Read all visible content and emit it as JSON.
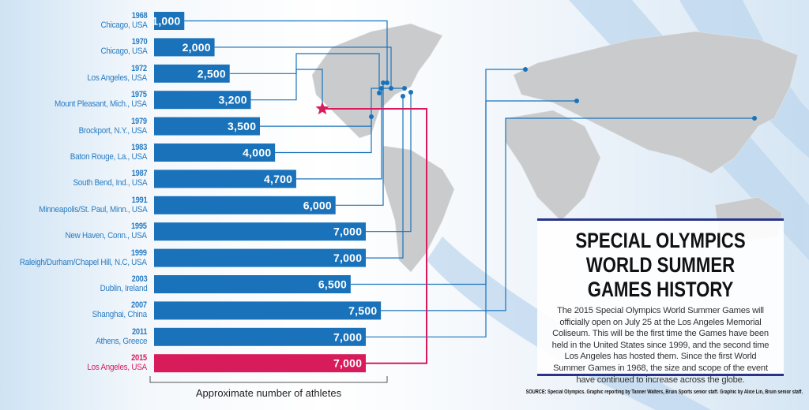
{
  "chart_data": {
    "type": "bar",
    "orientation": "horizontal",
    "xlabel": "Approximate number of athletes",
    "categories": [
      {
        "year": "1968",
        "city": "Chicago, USA"
      },
      {
        "year": "1970",
        "city": "Chicago, USA"
      },
      {
        "year": "1972",
        "city": "Los Angeles, USA"
      },
      {
        "year": "1975",
        "city": "Mount Pleasant, Mich., USA"
      },
      {
        "year": "1979",
        "city": "Brockport, N.Y., USA"
      },
      {
        "year": "1983",
        "city": "Baton Rouge, La., USA"
      },
      {
        "year": "1987",
        "city": "South Bend, Ind., USA"
      },
      {
        "year": "1991",
        "city": "Minneapolis/St. Paul, Minn., USA"
      },
      {
        "year": "1995",
        "city": "New Haven, Conn., USA"
      },
      {
        "year": "1999",
        "city": "Raleigh/Durham/Chapel Hill, N.C, USA"
      },
      {
        "year": "2003",
        "city": "Dublin, Ireland"
      },
      {
        "year": "2007",
        "city": "Shanghai, China"
      },
      {
        "year": "2011",
        "city": "Athens, Greece"
      },
      {
        "year": "2015",
        "city": "Los Angeles, USA"
      }
    ],
    "values": [
      1000,
      2000,
      2500,
      3200,
      3500,
      4000,
      4700,
      6000,
      7000,
      7000,
      6500,
      7500,
      7000,
      7000
    ],
    "value_labels": [
      "1,000",
      "2,000",
      "2,500",
      "3,200",
      "3,500",
      "4,000",
      "4,700",
      "6,000",
      "7,000",
      "7,000",
      "6,500",
      "7,500",
      "7,000",
      "7,000"
    ],
    "highlight_index": 13,
    "colors": {
      "bar": "#1a73ba",
      "highlight": "#d81b5b",
      "label": "#2a7cc2",
      "map": "#c9cbcd"
    }
  },
  "infobox": {
    "title": "SPECIAL OLYMPICS WORLD SUMMER GAMES HISTORY",
    "body": "The 2015 Special Olympics World Summer Games will officially open on July 25 at the Los Angeles Memorial Coliseum. This will be the first time the Games have been held in the United States since 1999, and the second time Los Angeles has hosted them. Since the first World Summer Games in 1968, the size and scope of the event have continued to increase across the globe."
  },
  "source": "SOURCE: Special Olympics. Graphic reporting by Tanner Walters, Bruin Sports senior staff. Graphic by Alice Lin, Bruin senior staff."
}
